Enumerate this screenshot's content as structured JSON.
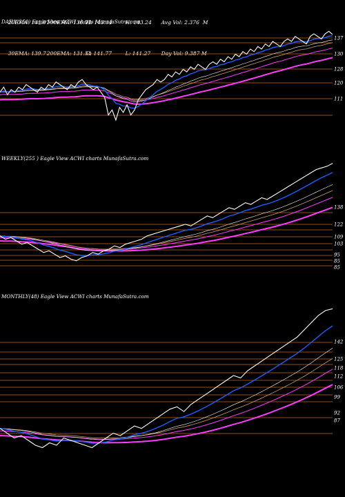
{
  "header": {
    "row1": [
      "20EMA: 141.07",
      "100EMA: 136.73",
      "H: 143.14",
      "H: 143.24",
      "Avg Vol: 2.376  M"
    ],
    "row2": [
      "30EMA: 139.7",
      "200EMA: 131.54",
      "C: 141.77",
      "L: 141.27",
      "Day Vol: 9.387 M"
    ]
  },
  "colors": {
    "background": "#000000",
    "price": "#ffffff",
    "ema_fast": "#1e5eff",
    "ema_slow": "#ff3cff",
    "ema_mid": "#c8a06e",
    "level_line": "#c8641e"
  },
  "chart_data": [
    {
      "type": "line",
      "label": "DAILY(250) Eagle   View  ACWI charts MunafaSutra.com",
      "ylim": [
        105,
        145
      ],
      "ticks": [
        "137",
        "130",
        "128",
        "120",
        "111"
      ],
      "price": [
        119,
        121,
        118,
        120,
        119,
        121,
        120,
        122,
        121,
        120,
        119,
        121,
        120,
        122,
        121,
        123,
        122,
        121,
        120,
        122,
        121,
        123,
        124,
        122,
        121,
        120,
        121,
        119,
        117,
        110,
        112,
        108,
        113,
        111,
        114,
        110,
        112,
        116,
        118,
        120,
        121,
        122,
        124,
        123,
        124,
        126,
        125,
        127,
        126,
        128,
        127,
        129,
        128,
        130,
        129,
        128,
        130,
        131,
        130,
        132,
        131,
        133,
        132,
        134,
        133,
        135,
        134,
        136,
        135,
        137,
        136,
        138,
        137,
        139,
        138,
        137,
        139,
        140,
        139,
        141,
        140,
        139,
        138,
        141,
        142,
        141,
        140,
        142,
        143,
        141.77
      ]
    },
    {
      "type": "line",
      "label": "WEEKLY(255                 ) Eagle   View  ACWI charts MunafaSutra.com",
      "ylim": [
        80,
        142
      ],
      "ticks": [
        "138",
        "122",
        "109",
        "103",
        "95",
        "85",
        "85"
      ],
      "price": [
        98,
        96,
        97,
        95,
        93,
        94,
        92,
        90,
        88,
        89,
        87,
        85,
        86,
        84,
        83,
        85,
        86,
        88,
        87,
        89,
        90,
        92,
        91,
        93,
        94,
        95,
        96,
        98,
        99,
        100,
        101,
        102,
        103,
        104,
        105,
        104,
        106,
        108,
        110,
        109,
        111,
        113,
        115,
        114,
        116,
        118,
        117,
        119,
        121,
        120,
        122,
        124,
        126,
        128,
        130,
        132,
        134,
        136,
        138,
        139,
        140,
        141.77
      ]
    },
    {
      "type": "line",
      "label": "MONTHLY(48) Eagle   View  ACWI charts MunafaSutra.com",
      "ylim": [
        85,
        145
      ],
      "ticks": [
        "142",
        "125",
        "118",
        "112",
        "106",
        "99",
        "92",
        "87"
      ],
      "price": [
        92,
        90,
        88,
        89,
        87,
        85,
        84,
        86,
        85,
        88,
        87,
        86,
        85,
        84,
        86,
        88,
        90,
        89,
        91,
        93,
        92,
        94,
        96,
        98,
        100,
        101,
        99,
        102,
        104,
        106,
        108,
        110,
        112,
        114,
        113,
        116,
        118,
        120,
        122,
        124,
        126,
        128,
        130,
        133,
        136,
        139,
        141,
        141.77
      ]
    }
  ]
}
